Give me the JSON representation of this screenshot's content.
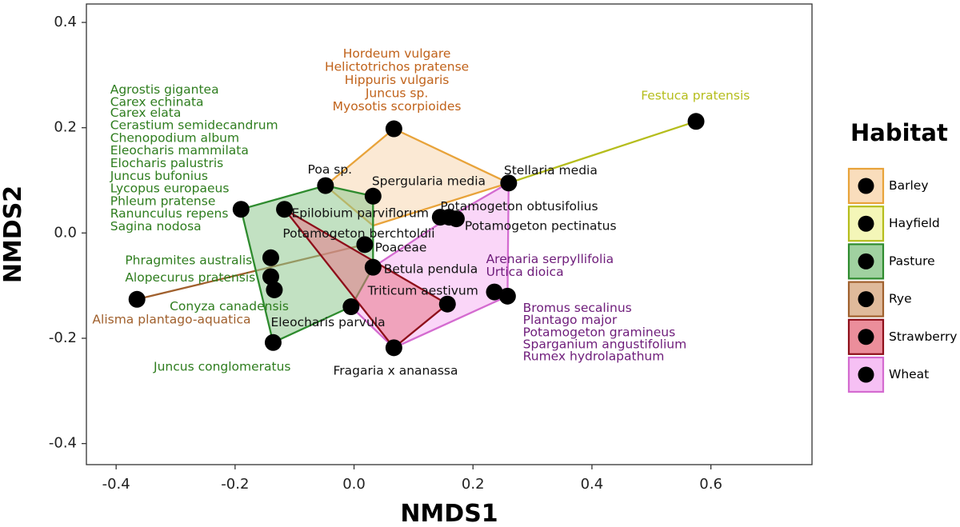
{
  "chart_data": {
    "type": "scatter",
    "xlabel": "NMDS1",
    "ylabel": "NMDS2",
    "xlim": [
      -0.45,
      0.77
    ],
    "ylim": [
      -0.44,
      0.435
    ],
    "xticks": [
      -0.4,
      -0.2,
      0.0,
      0.2,
      0.4,
      0.6
    ],
    "yticks": [
      -0.4,
      -0.2,
      0.0,
      0.2,
      0.4
    ],
    "xtick_labels": [
      "-0.4",
      "-0.2",
      "0.0",
      "0.2",
      "0.4",
      "0.6"
    ],
    "ytick_labels": [
      "-0.4",
      "-0.2",
      "0.0",
      "0.2",
      "0.4"
    ],
    "grid": false,
    "legend": {
      "title": "Habitat",
      "position": "right",
      "entries": [
        {
          "name": "Barley",
          "color": "#E8A33A"
        },
        {
          "name": "Hayfield",
          "color": "#B5BD1C"
        },
        {
          "name": "Pasture",
          "color": "#2E8B2E"
        },
        {
          "name": "Rye",
          "color": "#A0602D"
        },
        {
          "name": "Strawberry",
          "color": "#7A0A14"
        },
        {
          "name": "Wheat",
          "color": "#D46BD0"
        }
      ]
    },
    "habitat_styles": {
      "Barley": {
        "stroke": "#E8A33A",
        "fill": "#F8D7B0",
        "label": "#C0621A"
      },
      "Hayfield": {
        "stroke": "#B5BD1C",
        "fill": "#F2F5AC",
        "label": "#B5BD1C"
      },
      "Pasture": {
        "stroke": "#2E8B2E",
        "fill": "#8FC98F",
        "label": "#2E7D1E"
      },
      "Rye": {
        "stroke": "#A0602D",
        "fill": "#D9AE8A",
        "label": "#A0602D"
      },
      "Strawberry": {
        "stroke": "#8E0F1A",
        "fill": "#E77A8A",
        "label": "#7A0A14"
      },
      "Wheat": {
        "stroke": "#D46BD0",
        "fill": "#F5B5F2",
        "label": "#6E1C7A"
      }
    },
    "hulls": [
      {
        "habitat": "Barley",
        "points": [
          [
            -0.048,
            0.09
          ],
          [
            0.067,
            0.198
          ],
          [
            0.26,
            0.095
          ],
          [
            0.032,
            0.014
          ]
        ]
      },
      {
        "habitat": "Hayfield",
        "points": [
          [
            0.26,
            0.095
          ],
          [
            0.575,
            0.212
          ]
        ]
      },
      {
        "habitat": "Rye",
        "points": [
          [
            -0.365,
            -0.126
          ],
          [
            0.018,
            -0.022
          ]
        ]
      },
      {
        "habitat": "Wheat",
        "points": [
          [
            0.26,
            0.095
          ],
          [
            0.16,
            0.03
          ],
          [
            0.032,
            -0.065
          ],
          [
            -0.005,
            -0.14
          ],
          [
            0.067,
            -0.218
          ],
          [
            0.258,
            -0.12
          ]
        ]
      },
      {
        "habitat": "Pasture",
        "points": [
          [
            -0.19,
            0.045
          ],
          [
            -0.048,
            0.09
          ],
          [
            0.032,
            0.07
          ],
          [
            0.032,
            -0.065
          ],
          [
            -0.005,
            -0.14
          ],
          [
            -0.136,
            -0.208
          ]
        ]
      },
      {
        "habitat": "Strawberry",
        "points": [
          [
            -0.117,
            0.045
          ],
          [
            0.157,
            -0.135
          ],
          [
            0.067,
            -0.218
          ]
        ]
      }
    ],
    "points": [
      {
        "x": 0.067,
        "y": 0.198
      },
      {
        "x": 0.575,
        "y": 0.212
      },
      {
        "x": 0.26,
        "y": 0.095
      },
      {
        "x": -0.048,
        "y": 0.09
      },
      {
        "x": 0.032,
        "y": 0.07
      },
      {
        "x": -0.19,
        "y": 0.045
      },
      {
        "x": -0.117,
        "y": 0.045
      },
      {
        "x": 0.145,
        "y": 0.03
      },
      {
        "x": 0.16,
        "y": 0.03
      },
      {
        "x": 0.172,
        "y": 0.027
      },
      {
        "x": 0.018,
        "y": -0.022
      },
      {
        "x": 0.032,
        "y": -0.065
      },
      {
        "x": -0.14,
        "y": -0.047
      },
      {
        "x": -0.14,
        "y": -0.083
      },
      {
        "x": -0.134,
        "y": -0.108
      },
      {
        "x": -0.365,
        "y": -0.126
      },
      {
        "x": -0.005,
        "y": -0.14
      },
      {
        "x": -0.136,
        "y": -0.208
      },
      {
        "x": 0.157,
        "y": -0.135
      },
      {
        "x": 0.236,
        "y": -0.112
      },
      {
        "x": 0.258,
        "y": -0.12
      },
      {
        "x": 0.067,
        "y": -0.218
      }
    ],
    "annotations": [
      {
        "text": "Hordeum vulgare",
        "x": 0.072,
        "y": 0.34,
        "anchor": "middle",
        "habitat": "Barley"
      },
      {
        "text": "Helictotrichos pratense",
        "x": 0.072,
        "y": 0.315,
        "anchor": "middle",
        "habitat": "Barley"
      },
      {
        "text": "Hippuris vulgaris",
        "x": 0.072,
        "y": 0.29,
        "anchor": "middle",
        "habitat": "Barley"
      },
      {
        "text": "Juncus sp.",
        "x": 0.072,
        "y": 0.265,
        "anchor": "middle",
        "habitat": "Barley"
      },
      {
        "text": "Myosotis scorpioides",
        "x": 0.072,
        "y": 0.24,
        "anchor": "middle",
        "habitat": "Barley"
      },
      {
        "text": "Festuca pratensis",
        "x": 0.574,
        "y": 0.26,
        "anchor": "middle",
        "habitat": "Hayfield"
      },
      {
        "text": "Agrostis gigantea",
        "x": -0.41,
        "y": 0.272,
        "anchor": "start",
        "habitat": "Pasture"
      },
      {
        "text": "Carex echinata",
        "x": -0.41,
        "y": 0.248,
        "anchor": "start",
        "habitat": "Pasture"
      },
      {
        "text": "Carex elata",
        "x": -0.41,
        "y": 0.228,
        "anchor": "start",
        "habitat": "Pasture"
      },
      {
        "text": "Cerastium semidecandrum",
        "x": -0.41,
        "y": 0.204,
        "anchor": "start",
        "habitat": "Pasture"
      },
      {
        "text": "Chenopodium album",
        "x": -0.41,
        "y": 0.18,
        "anchor": "start",
        "habitat": "Pasture"
      },
      {
        "text": "Eleocharis mammilata",
        "x": -0.41,
        "y": 0.156,
        "anchor": "start",
        "habitat": "Pasture"
      },
      {
        "text": "Elocharis palustris",
        "x": -0.41,
        "y": 0.132,
        "anchor": "start",
        "habitat": "Pasture"
      },
      {
        "text": "Juncus bufonius",
        "x": -0.41,
        "y": 0.108,
        "anchor": "start",
        "habitat": "Pasture"
      },
      {
        "text": "Lycopus europaeus",
        "x": -0.41,
        "y": 0.084,
        "anchor": "start",
        "habitat": "Pasture"
      },
      {
        "text": "Phleum pratense",
        "x": -0.41,
        "y": 0.06,
        "anchor": "start",
        "habitat": "Pasture"
      },
      {
        "text": "Ranunculus repens",
        "x": -0.41,
        "y": 0.036,
        "anchor": "start",
        "habitat": "Pasture"
      },
      {
        "text": "Sagina nodosa",
        "x": -0.41,
        "y": 0.012,
        "anchor": "start",
        "habitat": "Pasture"
      },
      {
        "text": "Phragmites australis",
        "x": -0.385,
        "y": -0.053,
        "anchor": "start",
        "habitat": "Pasture"
      },
      {
        "text": "Alopecurus pratensis",
        "x": -0.385,
        "y": -0.085,
        "anchor": "start",
        "habitat": "Pasture"
      },
      {
        "text": "Conyza canadensis",
        "x": -0.31,
        "y": -0.14,
        "anchor": "start",
        "habitat": "Pasture"
      },
      {
        "text": "Juncus conglomeratus",
        "x": -0.337,
        "y": -0.255,
        "anchor": "start",
        "habitat": "Pasture"
      },
      {
        "text": "Alisma plantago-aquatica",
        "x": -0.44,
        "y": -0.165,
        "anchor": "start",
        "habitat": "Rye"
      },
      {
        "text": "Arenaria serpyllifolia",
        "x": 0.222,
        "y": -0.05,
        "anchor": "start",
        "habitat": "Wheat"
      },
      {
        "text": "Urtica dioica",
        "x": 0.222,
        "y": -0.075,
        "anchor": "start",
        "habitat": "Wheat"
      },
      {
        "text": "Bromus secalinus",
        "x": 0.284,
        "y": -0.143,
        "anchor": "start",
        "habitat": "Wheat"
      },
      {
        "text": "Plantago major",
        "x": 0.284,
        "y": -0.166,
        "anchor": "start",
        "habitat": "Wheat"
      },
      {
        "text": "Potamogeton gramineus",
        "x": 0.284,
        "y": -0.189,
        "anchor": "start",
        "habitat": "Wheat"
      },
      {
        "text": "Sparganium angustifolium",
        "x": 0.284,
        "y": -0.212,
        "anchor": "start",
        "habitat": "Wheat"
      },
      {
        "text": "Rumex hydrolapathum",
        "x": 0.284,
        "y": -0.235,
        "anchor": "start",
        "habitat": "Wheat"
      },
      {
        "text": "Poa sp.",
        "x": -0.078,
        "y": 0.12,
        "anchor": "start",
        "habitat": null
      },
      {
        "text": "Spergularia media",
        "x": 0.03,
        "y": 0.098,
        "anchor": "start",
        "habitat": null
      },
      {
        "text": "Stellaria media",
        "x": 0.252,
        "y": 0.118,
        "anchor": "start",
        "habitat": null
      },
      {
        "text": "Potamogeton obtusifolius",
        "x": 0.145,
        "y": 0.05,
        "anchor": "start",
        "habitat": null
      },
      {
        "text": "Potamogeton pectinatus",
        "x": 0.186,
        "y": 0.013,
        "anchor": "start",
        "habitat": null
      },
      {
        "text": "Epilobium parviflorum",
        "x": -0.105,
        "y": 0.037,
        "anchor": "start",
        "habitat": null
      },
      {
        "text": "Potamogeton berchtoldii",
        "x": -0.12,
        "y": -0.002,
        "anchor": "start",
        "habitat": null
      },
      {
        "text": "Poaceae",
        "x": 0.035,
        "y": -0.028,
        "anchor": "start",
        "habitat": null
      },
      {
        "text": "Betula pendula",
        "x": 0.05,
        "y": -0.069,
        "anchor": "start",
        "habitat": null
      },
      {
        "text": "Triticum aestivum",
        "x": 0.023,
        "y": -0.11,
        "anchor": "start",
        "habitat": null
      },
      {
        "text": "Eleocharis parvula",
        "x": -0.14,
        "y": -0.17,
        "anchor": "start",
        "habitat": null
      },
      {
        "text": "Fragaria x ananassa",
        "x": -0.035,
        "y": -0.262,
        "anchor": "start",
        "habitat": null
      }
    ]
  }
}
